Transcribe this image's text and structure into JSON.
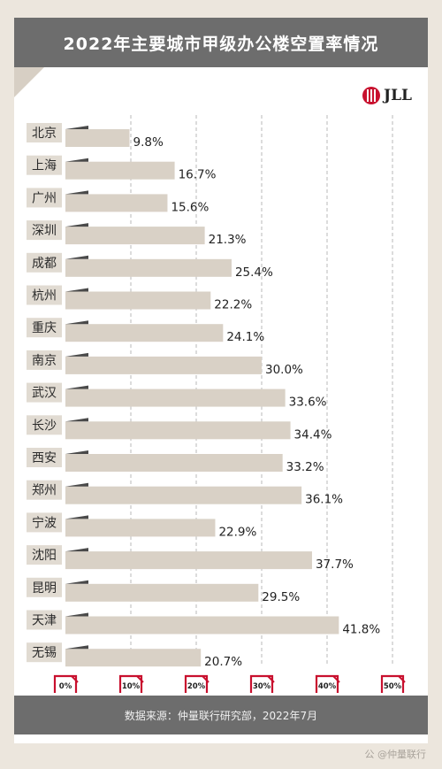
{
  "chart_data": {
    "type": "bar",
    "orientation": "horizontal",
    "title": "2022年主要城市甲级办公楼空置率情况",
    "categories": [
      "北京",
      "上海",
      "广州",
      "深圳",
      "成都",
      "杭州",
      "重庆",
      "南京",
      "武汉",
      "长沙",
      "西安",
      "郑州",
      "宁波",
      "沈阳",
      "昆明",
      "天津",
      "无锡"
    ],
    "values": [
      9.8,
      16.7,
      15.6,
      21.3,
      25.4,
      22.2,
      24.1,
      30.0,
      33.6,
      34.4,
      33.2,
      36.1,
      22.9,
      37.7,
      29.5,
      41.8,
      20.7
    ],
    "value_labels": [
      "9.8%",
      "16.7%",
      "15.6%",
      "21.3%",
      "25.4%",
      "22.2%",
      "24.1%",
      "30.0%",
      "33.6%",
      "34.4%",
      "33.2%",
      "36.1%",
      "22.9%",
      "37.7%",
      "29.5%",
      "41.8%",
      "20.7%"
    ],
    "x_ticks": [
      "0%",
      "10%",
      "20%",
      "30%",
      "40%",
      "50%"
    ],
    "xlim": [
      0,
      50
    ],
    "grid": true,
    "grid_style": "dashed vertical",
    "bar_color": "#d9d1c6",
    "label_box_color": "#e1dbd2"
  },
  "logo": {
    "text": "JLL",
    "color": "#c8102e"
  },
  "source": "数据来源：仲量联行研究部，2022年7月",
  "watermark": "公 @仲量联行"
}
